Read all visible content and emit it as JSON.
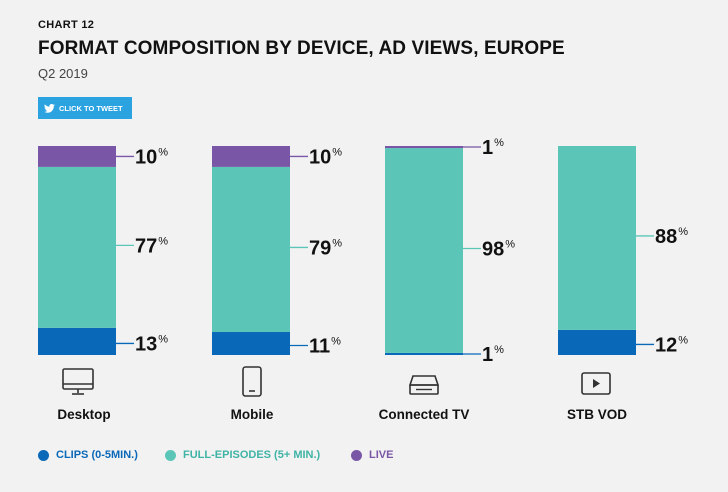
{
  "header": {
    "chart_number": "CHART 12",
    "title": "FORMAT COMPOSITION BY DEVICE, AD VIEWS, EUROPE",
    "subtitle": "Q2 2019",
    "tweet_label": "CLICK TO TWEET"
  },
  "colors": {
    "clips": "#0a68b8",
    "full_episodes": "#5bc6b8",
    "live": "#7a56a6",
    "tweet": "#2aa3e0"
  },
  "chart_data": {
    "type": "bar",
    "stacked": true,
    "normalized_to_100": true,
    "categories": [
      "Desktop",
      "Mobile",
      "Connected TV",
      "STB VOD"
    ],
    "series": [
      {
        "name": "CLIPS (0-5MIN.)",
        "key": "clips",
        "values": [
          13,
          11,
          1,
          12
        ]
      },
      {
        "name": "FULL-EPISODES (5+ MIN.)",
        "key": "full_episodes",
        "values": [
          77,
          79,
          98,
          88
        ]
      },
      {
        "name": "LIVE",
        "key": "live",
        "values": [
          10,
          10,
          1,
          0
        ]
      }
    ],
    "labels": [
      {
        "live": "10",
        "full_episodes": "77",
        "clips": "13"
      },
      {
        "live": "10",
        "full_episodes": "79",
        "clips": "11"
      },
      {
        "live": "1",
        "full_episodes": "98",
        "clips": "1"
      },
      {
        "live": null,
        "full_episodes": "88",
        "clips": "12"
      }
    ],
    "unit": "%",
    "title": "FORMAT COMPOSITION BY DEVICE, AD VIEWS, EUROPE",
    "subtitle": "Q2 2019",
    "icons": [
      "desktop-icon",
      "mobile-icon",
      "connected-tv-icon",
      "stb-vod-icon"
    ]
  },
  "legend": [
    {
      "label": "CLIPS (0-5MIN.)",
      "key": "clips"
    },
    {
      "label": "FULL-EPISODES (5+ MIN.)",
      "key": "full_episodes"
    },
    {
      "label": "LIVE",
      "key": "live"
    }
  ]
}
